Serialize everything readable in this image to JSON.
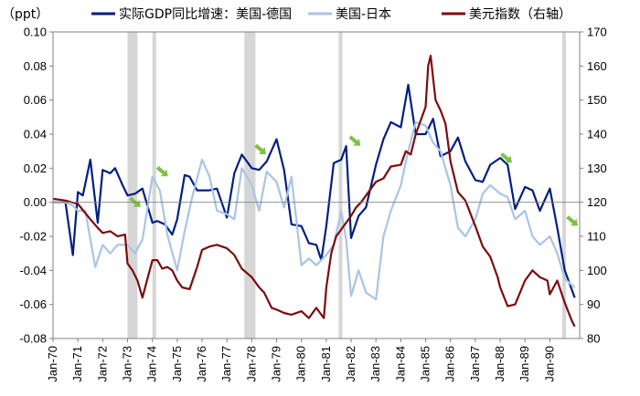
{
  "chart_data": {
    "type": "line",
    "title": "",
    "y_unit_label": "（ppt）",
    "left_axis": {
      "ylim": [
        -0.08,
        0.1
      ],
      "ticks": [
        "0.10",
        "0.08",
        "0.06",
        "0.04",
        "0.02",
        "0.00",
        "-0.02",
        "-0.04",
        "-0.06",
        "-0.08"
      ],
      "tick_values": [
        0.1,
        0.08,
        0.06,
        0.04,
        0.02,
        0.0,
        -0.02,
        -0.04,
        -0.06,
        -0.08
      ]
    },
    "right_axis": {
      "ylim": [
        80,
        170
      ],
      "ticks": [
        "170",
        "160",
        "150",
        "140",
        "130",
        "120",
        "110",
        "100",
        "90",
        "80"
      ],
      "tick_values": [
        170,
        160,
        150,
        140,
        130,
        120,
        110,
        100,
        90,
        80
      ]
    },
    "x_axis": {
      "range": [
        1970.0,
        1991.2
      ],
      "ticks": [
        "Jan-70",
        "Jan-71",
        "Jan-72",
        "Jan-73",
        "Jan-74",
        "Jan-75",
        "Jan-76",
        "Jan-77",
        "Jan-78",
        "Jan-79",
        "Jan-80",
        "Jan-81",
        "Jan-82",
        "Jan-83",
        "Jan-84",
        "Jan-85",
        "Jan-86",
        "Jan-87",
        "Jan-88",
        "Jan-89",
        "Jan-90"
      ],
      "tick_values": [
        1970,
        1971,
        1972,
        1973,
        1974,
        1975,
        1976,
        1977,
        1978,
        1979,
        1980,
        1981,
        1982,
        1983,
        1984,
        1985,
        1986,
        1987,
        1988,
        1989,
        1990
      ]
    },
    "recession_bands": [
      [
        1973.0,
        1973.4
      ],
      [
        1974.0,
        1974.15
      ],
      [
        1977.7,
        1978.15
      ],
      [
        1981.5,
        1981.65
      ],
      [
        1990.5,
        1990.65
      ]
    ],
    "arrows": [
      [
        1973.3,
        0.0
      ],
      [
        1974.4,
        0.018
      ],
      [
        1978.35,
        0.031
      ],
      [
        1982.15,
        0.036
      ],
      [
        1988.25,
        0.026
      ],
      [
        1990.9,
        -0.011
      ]
    ],
    "legend": [
      {
        "label": "实际GDP同比增速：美国-德国",
        "color": "#001f7f"
      },
      {
        "label": "美国-日本",
        "color": "#a9c4e6"
      },
      {
        "label": "美元指数（右轴）",
        "color": "#7b0c0c"
      }
    ],
    "series": [
      {
        "name": "实际GDP同比增速：美国-德国",
        "axis": "left",
        "color": "#001f7f",
        "x": [
          1970.0,
          1970.5,
          1970.8,
          1971.0,
          1971.2,
          1971.5,
          1971.8,
          1972.0,
          1972.3,
          1972.5,
          1972.8,
          1973.0,
          1973.3,
          1973.6,
          1974.0,
          1974.2,
          1974.5,
          1974.8,
          1975.0,
          1975.3,
          1975.5,
          1975.8,
          1976.0,
          1976.3,
          1976.6,
          1977.0,
          1977.3,
          1977.6,
          1978.0,
          1978.3,
          1978.6,
          1979.0,
          1979.3,
          1979.6,
          1980.0,
          1980.3,
          1980.6,
          1980.8,
          1981.0,
          1981.3,
          1981.6,
          1981.8,
          1982.0,
          1982.3,
          1982.6,
          1983.0,
          1983.3,
          1983.6,
          1984.0,
          1984.3,
          1984.6,
          1985.0,
          1985.3,
          1985.6,
          1986.0,
          1986.3,
          1986.6,
          1987.0,
          1987.3,
          1987.6,
          1988.0,
          1988.3,
          1988.6,
          1989.0,
          1989.3,
          1989.6,
          1990.0,
          1990.3,
          1990.6,
          1991.0
        ],
        "values": [
          0.0,
          0.0,
          -0.031,
          0.006,
          0.004,
          0.025,
          -0.012,
          0.019,
          0.017,
          0.02,
          0.01,
          0.004,
          0.005,
          0.008,
          -0.012,
          -0.011,
          -0.013,
          -0.019,
          -0.01,
          0.016,
          0.015,
          0.007,
          0.007,
          0.007,
          0.008,
          -0.009,
          0.017,
          0.028,
          0.02,
          0.019,
          0.024,
          0.037,
          0.019,
          -0.013,
          -0.014,
          -0.024,
          -0.025,
          -0.034,
          -0.014,
          0.023,
          0.025,
          0.033,
          -0.021,
          -0.008,
          -0.003,
          0.022,
          0.037,
          0.047,
          0.044,
          0.069,
          0.04,
          0.04,
          0.049,
          0.027,
          0.03,
          0.038,
          0.024,
          0.013,
          0.012,
          0.022,
          0.026,
          0.022,
          -0.004,
          0.009,
          0.007,
          -0.005,
          0.008,
          -0.015,
          -0.04,
          -0.056
        ]
      },
      {
        "name": "美国-日本",
        "axis": "left",
        "color": "#a9c4e6",
        "x": [
          1970.0,
          1970.5,
          1970.8,
          1971.0,
          1971.3,
          1971.7,
          1972.0,
          1972.3,
          1972.6,
          1973.0,
          1973.3,
          1973.6,
          1974.0,
          1974.3,
          1974.6,
          1975.0,
          1975.3,
          1975.6,
          1976.0,
          1976.3,
          1976.6,
          1977.0,
          1977.3,
          1977.6,
          1978.0,
          1978.3,
          1978.6,
          1979.0,
          1979.3,
          1979.6,
          1980.0,
          1980.3,
          1980.6,
          1981.0,
          1981.3,
          1981.6,
          1981.8,
          1982.0,
          1982.3,
          1982.6,
          1983.0,
          1983.3,
          1983.6,
          1984.0,
          1984.3,
          1984.6,
          1985.0,
          1985.3,
          1985.6,
          1986.0,
          1986.3,
          1986.6,
          1987.0,
          1987.3,
          1987.6,
          1988.0,
          1988.3,
          1988.6,
          1989.0,
          1989.3,
          1989.6,
          1990.0,
          1990.3,
          1990.6,
          1991.0
        ],
        "values": [
          0.0,
          0.0,
          -0.002,
          -0.005,
          -0.005,
          -0.038,
          -0.025,
          -0.03,
          -0.025,
          -0.025,
          -0.03,
          -0.022,
          0.015,
          0.007,
          -0.019,
          -0.04,
          -0.017,
          0.003,
          0.025,
          0.015,
          -0.005,
          -0.007,
          -0.01,
          0.02,
          0.01,
          -0.005,
          0.018,
          0.012,
          -0.003,
          0.015,
          -0.037,
          -0.033,
          -0.037,
          -0.031,
          -0.025,
          -0.005,
          -0.022,
          -0.055,
          -0.04,
          -0.053,
          -0.057,
          -0.02,
          -0.005,
          0.01,
          0.03,
          0.047,
          0.045,
          0.035,
          0.03,
          0.01,
          -0.015,
          -0.02,
          -0.01,
          0.005,
          0.01,
          0.005,
          0.003,
          -0.01,
          -0.005,
          -0.02,
          -0.025,
          -0.02,
          -0.03,
          -0.045,
          -0.05
        ]
      },
      {
        "name": "美元指数（右轴）",
        "axis": "right",
        "color": "#7b0c0c",
        "x": [
          1970.0,
          1970.5,
          1971.0,
          1971.5,
          1971.8,
          1972.0,
          1972.3,
          1972.6,
          1972.9,
          1973.0,
          1973.2,
          1973.4,
          1973.6,
          1973.8,
          1974.0,
          1974.2,
          1974.4,
          1974.6,
          1974.8,
          1975.0,
          1975.2,
          1975.5,
          1975.8,
          1976.0,
          1976.3,
          1976.6,
          1977.0,
          1977.3,
          1977.6,
          1978.0,
          1978.3,
          1978.5,
          1978.8,
          1979.0,
          1979.3,
          1979.6,
          1980.0,
          1980.3,
          1980.6,
          1980.9,
          1981.0,
          1981.2,
          1981.4,
          1981.6,
          1981.8,
          1982.0,
          1982.2,
          1982.4,
          1982.6,
          1982.8,
          1983.0,
          1983.3,
          1983.6,
          1984.0,
          1984.2,
          1984.4,
          1984.6,
          1984.8,
          1985.0,
          1985.1,
          1985.2,
          1985.4,
          1985.6,
          1985.8,
          1986.0,
          1986.3,
          1986.6,
          1987.0,
          1987.3,
          1987.6,
          1987.9,
          1988.0,
          1988.3,
          1988.6,
          1989.0,
          1989.3,
          1989.6,
          1989.9,
          1990.0,
          1990.3,
          1990.6,
          1990.9,
          1991.0
        ],
        "values": [
          121.0,
          120.5,
          119.5,
          115.0,
          112.5,
          111.0,
          111.5,
          110.0,
          110.5,
          102.0,
          100.0,
          97.0,
          92.0,
          97.5,
          103.0,
          103.0,
          100.5,
          101.0,
          100.0,
          97.0,
          95.0,
          94.5,
          101.0,
          106.0,
          107.0,
          107.5,
          106.5,
          104.5,
          100.5,
          98.0,
          95.0,
          93.5,
          89.0,
          88.5,
          87.5,
          87.0,
          88.0,
          86.0,
          89.0,
          86.0,
          95.0,
          105.0,
          110.0,
          112.0,
          114.0,
          116.0,
          118.5,
          120.0,
          122.0,
          124.0,
          126.0,
          127.0,
          130.5,
          131.0,
          135.0,
          134.0,
          140.0,
          144.0,
          148.0,
          160.0,
          163.0,
          150.0,
          147.0,
          143.0,
          132.0,
          123.0,
          120.5,
          113.0,
          107.0,
          104.0,
          98.0,
          95.0,
          89.5,
          90.0,
          97.0,
          100.0,
          98.0,
          97.0,
          93.0,
          97.0,
          90.5,
          85.0,
          83.5
        ]
      }
    ]
  }
}
